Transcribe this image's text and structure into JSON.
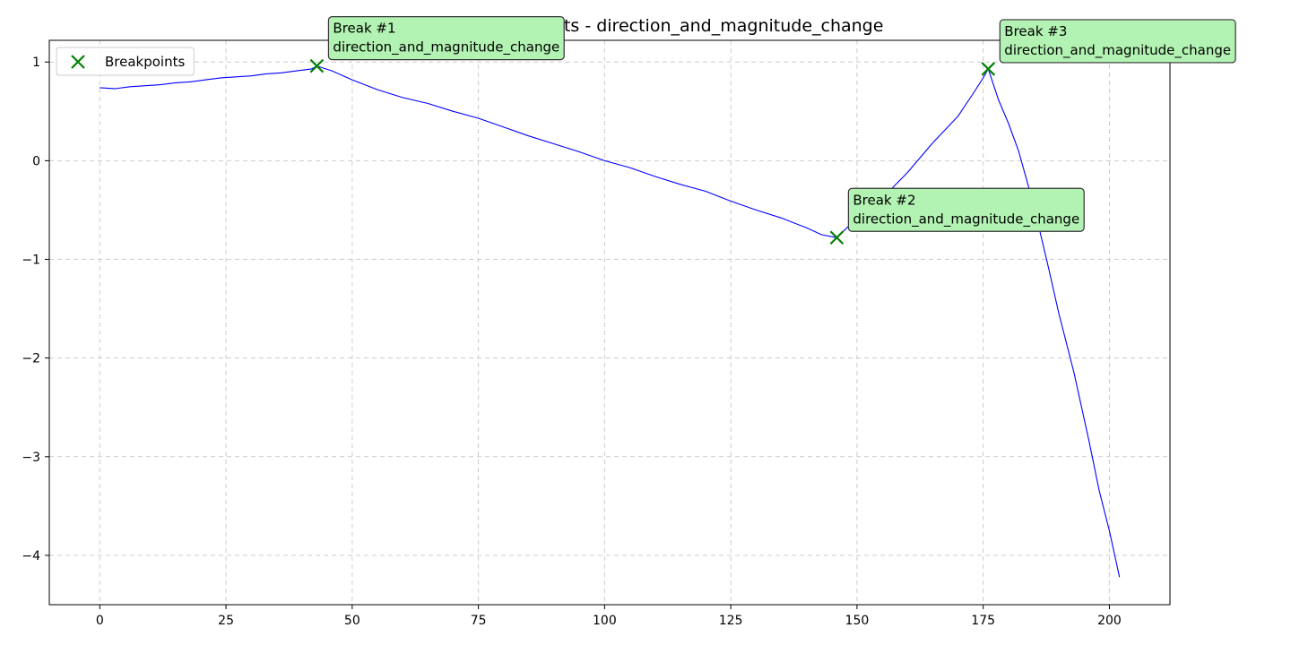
{
  "chart_data": {
    "type": "line",
    "title": "Trend Shift (multi) - 3 events - direction_and_magnitude_change",
    "xlabel": "",
    "ylabel": "",
    "xlim": [
      -10,
      212
    ],
    "ylim": [
      -4.5,
      1.22
    ],
    "x_ticks": [
      0,
      25,
      50,
      75,
      100,
      125,
      150,
      175,
      200
    ],
    "y_ticks": [
      1,
      0,
      -1,
      -2,
      -3,
      -4
    ],
    "x_tick_labels": [
      "0",
      "25",
      "50",
      "75",
      "100",
      "125",
      "150",
      "175",
      "200"
    ],
    "y_tick_labels": [
      "1",
      "0",
      "−1",
      "−2",
      "−3",
      "−4"
    ],
    "grid": true,
    "legend": {
      "placement": "top-left",
      "entries": [
        {
          "label": "Breakpoints",
          "marker": "x",
          "color": "#008000"
        }
      ]
    },
    "series": [
      {
        "color": "#0000ff",
        "points": [
          [
            0,
            0.74
          ],
          [
            3,
            0.73
          ],
          [
            6,
            0.75
          ],
          [
            9,
            0.76
          ],
          [
            12,
            0.77
          ],
          [
            15,
            0.79
          ],
          [
            18,
            0.8
          ],
          [
            21,
            0.82
          ],
          [
            24,
            0.84
          ],
          [
            27,
            0.85
          ],
          [
            30,
            0.86
          ],
          [
            33,
            0.88
          ],
          [
            36,
            0.89
          ],
          [
            39,
            0.91
          ],
          [
            42,
            0.93
          ],
          [
            43,
            0.96
          ],
          [
            46,
            0.91
          ],
          [
            50,
            0.82
          ],
          [
            55,
            0.72
          ],
          [
            60,
            0.64
          ],
          [
            65,
            0.58
          ],
          [
            70,
            0.5
          ],
          [
            75,
            0.43
          ],
          [
            80,
            0.34
          ],
          [
            85,
            0.25
          ],
          [
            90,
            0.17
          ],
          [
            95,
            0.09
          ],
          [
            100,
            0.0
          ],
          [
            105,
            -0.07
          ],
          [
            110,
            -0.16
          ],
          [
            115,
            -0.24
          ],
          [
            120,
            -0.31
          ],
          [
            125,
            -0.41
          ],
          [
            130,
            -0.5
          ],
          [
            135,
            -0.58
          ],
          [
            140,
            -0.68
          ],
          [
            143,
            -0.75
          ],
          [
            146,
            -0.78
          ],
          [
            150,
            -0.58
          ],
          [
            155,
            -0.38
          ],
          [
            160,
            -0.12
          ],
          [
            165,
            0.18
          ],
          [
            170,
            0.45
          ],
          [
            173,
            0.68
          ],
          [
            175,
            0.84
          ],
          [
            176,
            0.93
          ],
          [
            178,
            0.62
          ],
          [
            180,
            0.38
          ],
          [
            182,
            0.1
          ],
          [
            185,
            -0.45
          ],
          [
            188,
            -1.1
          ],
          [
            190,
            -1.55
          ],
          [
            193,
            -2.15
          ],
          [
            196,
            -2.85
          ],
          [
            198,
            -3.35
          ],
          [
            200,
            -3.75
          ],
          [
            202,
            -4.22
          ]
        ]
      }
    ],
    "breakpoints": [
      {
        "x": 43,
        "y": 0.96,
        "label": "Break #1",
        "type": "direction_and_magnitude_change"
      },
      {
        "x": 146,
        "y": -0.78,
        "label": "Break #2",
        "type": "direction_and_magnitude_change"
      },
      {
        "x": 176,
        "y": 0.93,
        "label": "Break #3",
        "type": "direction_and_magnitude_change"
      }
    ],
    "colors": {
      "line": "#0000ff",
      "breakpoint": "#008000",
      "annotation_fill": "#b2f2b2",
      "annotation_border": "#333333",
      "grid": "#cccccc",
      "axes": "#000000"
    }
  }
}
